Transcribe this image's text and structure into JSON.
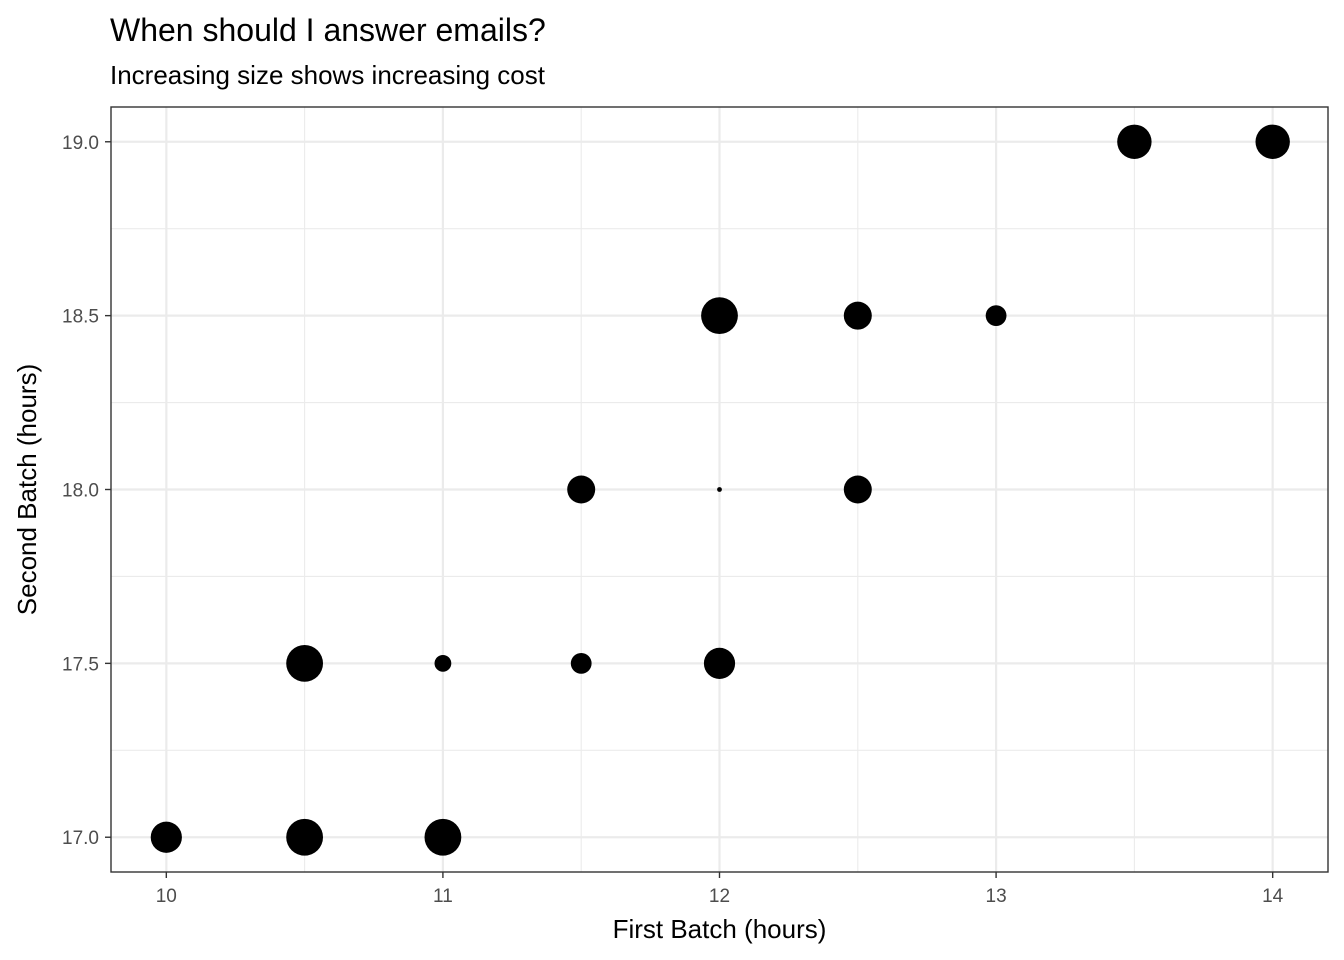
{
  "chart_data": {
    "type": "scatter",
    "title": "When should I answer emails?",
    "subtitle": "Increasing size shows increasing cost",
    "xlabel": "First Batch (hours)",
    "ylabel": "Second Batch (hours)",
    "xlim": [
      9.8,
      14.2
    ],
    "ylim": [
      16.9,
      19.1
    ],
    "x_ticks": [
      10,
      11,
      12,
      13,
      14
    ],
    "x_tick_labels": [
      "10",
      "11",
      "12",
      "13",
      "14"
    ],
    "y_ticks": [
      17.0,
      17.5,
      18.0,
      18.5,
      19.0
    ],
    "y_tick_labels": [
      "17.0",
      "17.5",
      "18.0",
      "18.5",
      "19.0"
    ],
    "grid": true,
    "legend": "none",
    "point_color": "#000000",
    "size_encodes": "cost (relative)",
    "points": [
      {
        "x": 10.0,
        "y": 17.0,
        "size": 0.78
      },
      {
        "x": 10.5,
        "y": 17.0,
        "size": 0.92
      },
      {
        "x": 11.0,
        "y": 17.0,
        "size": 0.92
      },
      {
        "x": 10.5,
        "y": 17.5,
        "size": 0.92
      },
      {
        "x": 11.0,
        "y": 17.5,
        "size": 0.42
      },
      {
        "x": 11.5,
        "y": 17.5,
        "size": 0.52
      },
      {
        "x": 12.0,
        "y": 17.5,
        "size": 0.78
      },
      {
        "x": 11.5,
        "y": 18.0,
        "size": 0.7
      },
      {
        "x": 12.0,
        "y": 18.0,
        "size": 0.12
      },
      {
        "x": 12.5,
        "y": 18.0,
        "size": 0.7
      },
      {
        "x": 12.0,
        "y": 18.5,
        "size": 0.92
      },
      {
        "x": 12.5,
        "y": 18.5,
        "size": 0.7
      },
      {
        "x": 13.0,
        "y": 18.5,
        "size": 0.52
      },
      {
        "x": 13.5,
        "y": 19.0,
        "size": 0.86
      },
      {
        "x": 14.0,
        "y": 19.0,
        "size": 0.86
      }
    ]
  }
}
